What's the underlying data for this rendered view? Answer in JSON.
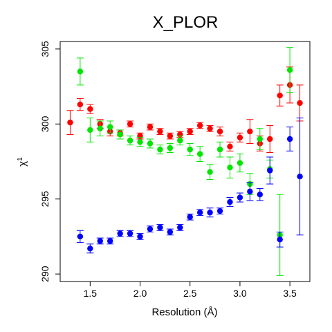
{
  "chart_data": {
    "type": "scatter",
    "title": "X_PLOR",
    "xlabel": "Resolution (Å)",
    "ylabel": "χ1",
    "ylabel_base": "χ",
    "ylabel_sup": "1",
    "xlim": [
      1.2,
      3.7
    ],
    "ylim": [
      289.5,
      305.5
    ],
    "x_ticks": [
      1.5,
      2.0,
      2.5,
      3.0,
      3.5
    ],
    "x_tick_labels": [
      "1.5",
      "2.0",
      "2.5",
      "3.0",
      "3.5"
    ],
    "y_ticks": [
      290,
      295,
      300,
      305
    ],
    "y_tick_labels": [
      "290",
      "295",
      "300",
      "305"
    ],
    "grid": false,
    "legend": "none",
    "series": [
      {
        "color": "#ff0000",
        "points": [
          {
            "x": 1.3,
            "y": 300.1,
            "err": 0.8
          },
          {
            "x": 1.4,
            "y": 301.3,
            "err": 0.4
          },
          {
            "x": 1.5,
            "y": 301.0,
            "err": 0.3
          },
          {
            "x": 1.6,
            "y": 300.0,
            "err": 0.3
          },
          {
            "x": 1.7,
            "y": 299.5,
            "err": 0.3
          },
          {
            "x": 1.8,
            "y": 299.4,
            "err": 0.2
          },
          {
            "x": 1.9,
            "y": 300.0,
            "err": 0.2
          },
          {
            "x": 2.0,
            "y": 299.2,
            "err": 0.2
          },
          {
            "x": 2.1,
            "y": 299.8,
            "err": 0.2
          },
          {
            "x": 2.2,
            "y": 299.5,
            "err": 0.2
          },
          {
            "x": 2.3,
            "y": 299.2,
            "err": 0.2
          },
          {
            "x": 2.4,
            "y": 299.3,
            "err": 0.2
          },
          {
            "x": 2.5,
            "y": 299.5,
            "err": 0.2
          },
          {
            "x": 2.6,
            "y": 299.9,
            "err": 0.2
          },
          {
            "x": 2.7,
            "y": 299.7,
            "err": 0.2
          },
          {
            "x": 2.8,
            "y": 299.5,
            "err": 0.3
          },
          {
            "x": 2.9,
            "y": 298.5,
            "err": 0.3
          },
          {
            "x": 3.0,
            "y": 299.1,
            "err": 0.3
          },
          {
            "x": 3.1,
            "y": 299.5,
            "err": 0.8
          },
          {
            "x": 3.2,
            "y": 298.7,
            "err": 0.5
          },
          {
            "x": 3.3,
            "y": 299.0,
            "err": 0.9
          },
          {
            "x": 3.4,
            "y": 301.9,
            "err": 0.7
          },
          {
            "x": 3.5,
            "y": 302.6,
            "err": 1.2
          },
          {
            "x": 3.6,
            "y": 301.4,
            "err": 1.2
          }
        ]
      },
      {
        "color": "#00e600",
        "points": [
          {
            "x": 1.4,
            "y": 303.5,
            "err": 0.9
          },
          {
            "x": 1.5,
            "y": 299.6,
            "err": 0.8
          },
          {
            "x": 1.6,
            "y": 299.7,
            "err": 0.5
          },
          {
            "x": 1.7,
            "y": 299.8,
            "err": 0.4
          },
          {
            "x": 1.8,
            "y": 299.3,
            "err": 0.3
          },
          {
            "x": 1.9,
            "y": 298.9,
            "err": 0.3
          },
          {
            "x": 2.0,
            "y": 298.8,
            "err": 0.3
          },
          {
            "x": 2.1,
            "y": 298.7,
            "err": 0.3
          },
          {
            "x": 2.2,
            "y": 298.3,
            "err": 0.3
          },
          {
            "x": 2.3,
            "y": 298.4,
            "err": 0.3
          },
          {
            "x": 2.4,
            "y": 298.9,
            "err": 0.3
          },
          {
            "x": 2.5,
            "y": 298.3,
            "err": 0.4
          },
          {
            "x": 2.6,
            "y": 298.0,
            "err": 0.5
          },
          {
            "x": 2.7,
            "y": 296.8,
            "err": 0.5
          },
          {
            "x": 2.8,
            "y": 298.3,
            "err": 0.5
          },
          {
            "x": 2.9,
            "y": 297.1,
            "err": 0.7
          },
          {
            "x": 3.0,
            "y": 297.4,
            "err": 0.6
          },
          {
            "x": 3.1,
            "y": 296.0,
            "err": 0.7
          },
          {
            "x": 3.2,
            "y": 299.0,
            "err": 0.7
          },
          {
            "x": 3.3,
            "y": 297.0,
            "err": 0.6
          },
          {
            "x": 3.4,
            "y": 292.6,
            "err": 2.7
          },
          {
            "x": 3.5,
            "y": 303.6,
            "err": 1.5
          }
        ]
      },
      {
        "color": "#0000ff",
        "points": [
          {
            "x": 1.4,
            "y": 292.5,
            "err": 0.4
          },
          {
            "x": 1.5,
            "y": 291.7,
            "err": 0.3
          },
          {
            "x": 1.6,
            "y": 292.2,
            "err": 0.2
          },
          {
            "x": 1.7,
            "y": 292.2,
            "err": 0.2
          },
          {
            "x": 1.8,
            "y": 292.7,
            "err": 0.2
          },
          {
            "x": 1.9,
            "y": 292.7,
            "err": 0.2
          },
          {
            "x": 2.0,
            "y": 292.5,
            "err": 0.2
          },
          {
            "x": 2.1,
            "y": 293.0,
            "err": 0.2
          },
          {
            "x": 2.2,
            "y": 293.1,
            "err": 0.2
          },
          {
            "x": 2.3,
            "y": 292.8,
            "err": 0.2
          },
          {
            "x": 2.4,
            "y": 293.1,
            "err": 0.2
          },
          {
            "x": 2.5,
            "y": 293.8,
            "err": 0.2
          },
          {
            "x": 2.6,
            "y": 294.1,
            "err": 0.2
          },
          {
            "x": 2.7,
            "y": 294.1,
            "err": 0.3
          },
          {
            "x": 2.8,
            "y": 294.2,
            "err": 0.2
          },
          {
            "x": 2.9,
            "y": 294.8,
            "err": 0.3
          },
          {
            "x": 3.0,
            "y": 295.1,
            "err": 0.3
          },
          {
            "x": 3.1,
            "y": 295.5,
            "err": 0.6
          },
          {
            "x": 3.2,
            "y": 295.3,
            "err": 0.4
          },
          {
            "x": 3.3,
            "y": 296.9,
            "err": 0.9
          },
          {
            "x": 3.4,
            "y": 292.3,
            "err": 0.5
          },
          {
            "x": 3.5,
            "y": 299.0,
            "err": 0.8
          },
          {
            "x": 3.6,
            "y": 296.5,
            "err": 3.9
          }
        ]
      }
    ]
  }
}
